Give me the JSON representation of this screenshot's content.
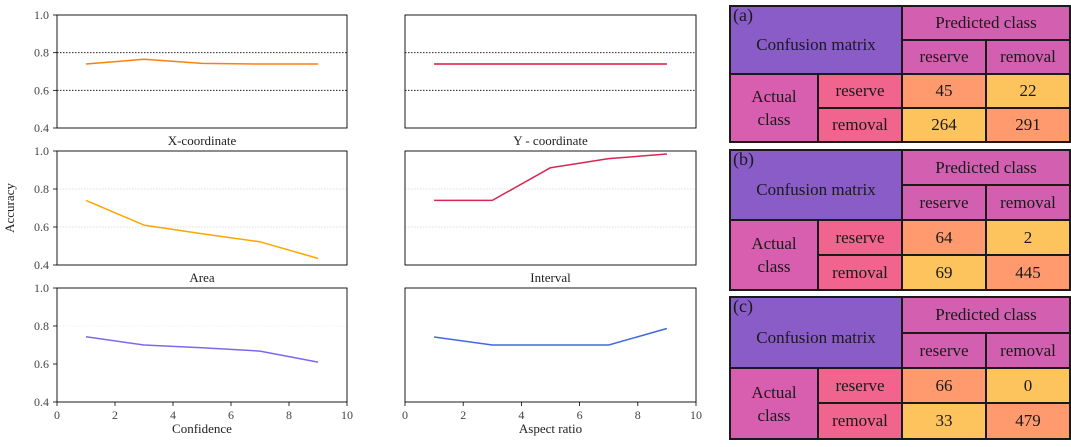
{
  "colors": {
    "x_coord": "#ff7f0e",
    "y_coord": "#dc143c",
    "area": "#ffa500",
    "interval": "#d62753",
    "confidence": "#7b68ee",
    "aspect": "#4169e1",
    "cm_header": "#8a5cc8",
    "cm_pred": "#d35fb0",
    "cm_row": "#f0648e",
    "cm_lo": "#ff9a6e",
    "cm_hi": "#fdc35c"
  },
  "chart_data": [
    {
      "type": "line",
      "title": "X-coordinate",
      "x": [
        1,
        3,
        5,
        7,
        9
      ],
      "values": [
        0.74,
        0.765,
        0.743,
        0.74,
        0.74
      ],
      "xlim": [
        0,
        10
      ],
      "ylim": [
        0.4,
        1.0
      ],
      "yticks": [
        "1.0",
        "0.8",
        "0.6",
        "0.4"
      ],
      "xticks": [],
      "grid": "dotted at 0.6 and 0.8",
      "xlabel": "",
      "ylabel": ""
    },
    {
      "type": "line",
      "title": "Y - coordinate",
      "x": [
        1,
        3,
        5,
        7,
        9
      ],
      "values": [
        0.74,
        0.74,
        0.74,
        0.74,
        0.74
      ],
      "xlim": [
        0,
        10
      ],
      "ylim": [
        0.4,
        1.0
      ],
      "yticks": [],
      "xticks": [],
      "grid": "dotted at 0.6 and 0.8",
      "xlabel": "",
      "ylabel": ""
    },
    {
      "type": "line",
      "title": "Area",
      "x": [
        1,
        3,
        5,
        7,
        9
      ],
      "values": [
        0.74,
        0.61,
        0.565,
        0.522,
        0.435
      ],
      "xlim": [
        0,
        10
      ],
      "ylim": [
        0.4,
        1.0
      ],
      "yticks": [
        "1.0",
        "0.8",
        "0.6",
        "0.4"
      ],
      "xticks": [],
      "grid": "light at 0.6 and 0.8",
      "xlabel": "",
      "ylabel": "Accuracy"
    },
    {
      "type": "line",
      "title": "Interval",
      "x": [
        1,
        3,
        5,
        7,
        9
      ],
      "values": [
        0.74,
        0.74,
        0.912,
        0.96,
        0.984
      ],
      "xlim": [
        0,
        10
      ],
      "ylim": [
        0.4,
        1.0
      ],
      "yticks": [],
      "xticks": [],
      "grid": "light at 0.6 and 0.8",
      "xlabel": "",
      "ylabel": ""
    },
    {
      "type": "line",
      "title": "",
      "x": [
        1,
        3,
        5,
        7,
        9
      ],
      "values": [
        0.743,
        0.7,
        0.686,
        0.668,
        0.61
      ],
      "xlim": [
        0,
        10
      ],
      "ylim": [
        0.4,
        1.0
      ],
      "yticks": [
        "1.0",
        "0.8",
        "0.6",
        "0.4"
      ],
      "xticks": [
        "0",
        "2",
        "4",
        "6",
        "8",
        "10"
      ],
      "grid": "light at 0.8",
      "xlabel": "Confidence",
      "ylabel": ""
    },
    {
      "type": "line",
      "title": "",
      "x": [
        1,
        3,
        5,
        7,
        9
      ],
      "values": [
        0.742,
        0.7,
        0.7,
        0.7,
        0.787
      ],
      "xlim": [
        0,
        10
      ],
      "ylim": [
        0.4,
        1.0
      ],
      "yticks": [],
      "xticks": [
        "0",
        "2",
        "4",
        "6",
        "8",
        "10"
      ],
      "grid": "none",
      "xlabel": "Aspect ratio",
      "ylabel": ""
    }
  ],
  "matrices": [
    {
      "tag": "(a)",
      "header": "Confusion matrix",
      "predicted": "Predicted class",
      "col1": "reserve",
      "col2": "removal",
      "actual_line1": "Actual",
      "actual_line2": "class",
      "row1": "reserve",
      "row2": "removal",
      "r1c1": "45",
      "r1c2": "22",
      "r2c1": "264",
      "r2c2": "291"
    },
    {
      "tag": "(b)",
      "header": "Confusion matrix",
      "predicted": "Predicted class",
      "col1": "reserve",
      "col2": "removal",
      "actual_line1": "Actual",
      "actual_line2": "class",
      "row1": "reserve",
      "row2": "removal",
      "r1c1": "64",
      "r1c2": "2",
      "r2c1": "69",
      "r2c2": "445"
    },
    {
      "tag": "(c)",
      "header": "Confusion matrix",
      "predicted": "Predicted class",
      "col1": "reserve",
      "col2": "removal",
      "actual_line1": "Actual",
      "actual_line2": "class",
      "row1": "reserve",
      "row2": "removal",
      "r1c1": "66",
      "r1c2": "0",
      "r2c1": "33",
      "r2c2": "479"
    }
  ]
}
